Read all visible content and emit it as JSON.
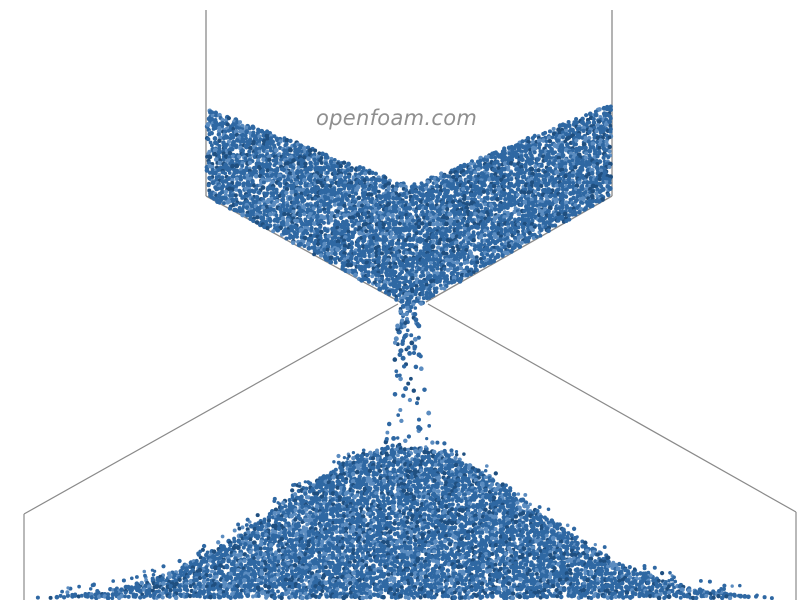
{
  "watermark": {
    "text": "openfoam.com"
  },
  "colors": {
    "particle": "#2f68a3",
    "particle_dark": "#1f4f80",
    "particle_light": "#5b8cc0",
    "wall": "#8a8a8a",
    "watermark": "#8f8f8f",
    "background": "#ffffff"
  },
  "scene": {
    "description_icon": "granular-hopper-flow-simulation"
  }
}
